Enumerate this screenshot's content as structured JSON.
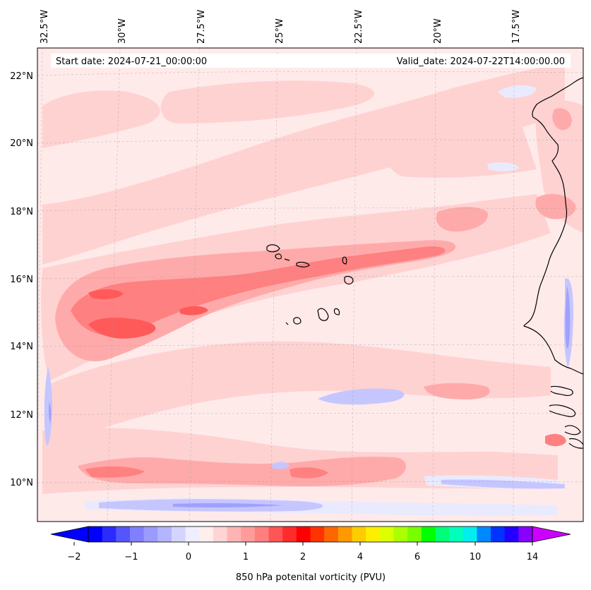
{
  "map": {
    "start_label": "Start date: 2024-07-21_00:00:00",
    "valid_label": "Valid_date: 2024-07-22T14:00:00.00",
    "lon_labels": [
      "32.5°W",
      "30°W",
      "27.5°W",
      "25°W",
      "22.5°W",
      "20°W",
      "17.5°W"
    ],
    "lat_labels": [
      "22°N",
      "20°N",
      "18°N",
      "16°N",
      "14°N",
      "12°N",
      "10°N"
    ],
    "colorbar": {
      "label": "850 hPa potenital vorticity (PVU)",
      "tick_labels": [
        "−2",
        "−1",
        "0",
        "1",
        "2",
        "4",
        "6",
        "10",
        "14"
      ],
      "colors": [
        "#0000ff",
        "#2b2bff",
        "#5555ff",
        "#7f7fff",
        "#9b9bff",
        "#b4b4ff",
        "#d4d4ff",
        "#eeeeff",
        "#ffeeee",
        "#ffd4d4",
        "#ffb4b4",
        "#ff9b9b",
        "#ff7f7f",
        "#ff5555",
        "#ff2b2b",
        "#ff0000",
        "#ff3300",
        "#ff6600",
        "#ff9900",
        "#ffcc00",
        "#ffee00",
        "#ddff00",
        "#aaff00",
        "#77ff00",
        "#00ff00",
        "#00ff77",
        "#00ffbb",
        "#00eeee",
        "#0088ff",
        "#0033ff",
        "#2200ff",
        "#8800ff"
      ],
      "under_color": "#0000ff",
      "over_color": "#cc00ff"
    },
    "colors": {
      "background": "#ffeaea",
      "light_red": "#ffd2d2",
      "mid_red": "#ffaaaa",
      "strong_red": "#ff8080",
      "deep_red": "#ff5a5a",
      "light_blue": "#eaeaff",
      "mid_blue": "#c6c6ff",
      "deep_blue": "#a0a0ff"
    }
  }
}
